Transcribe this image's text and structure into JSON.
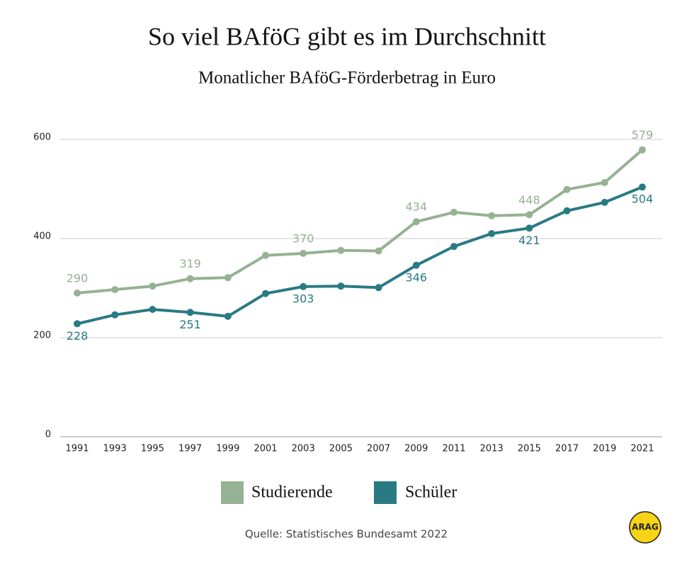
{
  "chart_data": {
    "type": "line",
    "title": "So viel BAföG gibt es im Durchschnitt",
    "subtitle": "Monatlicher BAföG-Förderbetrag in Euro",
    "categories": [
      "1991",
      "1993",
      "1995",
      "1997",
      "1999",
      "2001",
      "2003",
      "2005",
      "2007",
      "2009",
      "2011",
      "2013",
      "2015",
      "2017",
      "2019",
      "2021"
    ],
    "series": [
      {
        "name": "Studierende",
        "color": "#95b293",
        "values": [
          290,
          297,
          304,
          319,
          321,
          366,
          370,
          376,
          375,
          434,
          453,
          446,
          448,
          499,
          513,
          579
        ]
      },
      {
        "name": "Schüler",
        "color": "#2a7a84",
        "values": [
          228,
          246,
          257,
          251,
          243,
          289,
          303,
          304,
          301,
          346,
          384,
          410,
          421,
          456,
          473,
          504
        ]
      }
    ],
    "ylim": [
      0,
      600
    ],
    "yticks": [
      0,
      200,
      400,
      600
    ],
    "grid": true,
    "source": "Quelle:  Statistisches Bundesamt 2022",
    "logo": "ARAG"
  }
}
